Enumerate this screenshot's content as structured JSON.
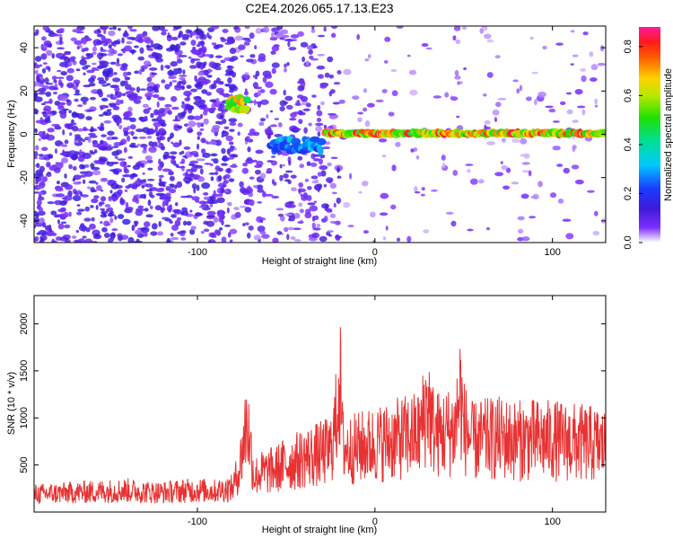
{
  "title": "C2E4.2026.065.17.13.E23",
  "chart_data": [
    {
      "type": "heatmap",
      "xlabel": "Height of straight line (km)",
      "ylabel": "Frequency (Hz)",
      "xlim": [
        -192,
        130
      ],
      "ylim": [
        -50,
        50
      ],
      "xticks": [
        -100,
        0,
        100
      ],
      "xtick_labels": [
        "-100",
        "0",
        "100"
      ],
      "yticks": [
        -40,
        -20,
        0,
        20,
        40
      ],
      "ytick_labels": [
        "-40",
        "-20",
        "0",
        "20",
        "40"
      ],
      "colorbar": {
        "label": "Normalized spectral amplitude",
        "range": [
          0,
          0.88
        ],
        "ticks": [
          0.0,
          0.2,
          0.4,
          0.6,
          0.8
        ],
        "tick_labels": [
          "0.0",
          "0.2",
          "0.4",
          "0.6",
          "0.8"
        ],
        "colormap": "rainbow"
      },
      "features": [
        {
          "name": "tone-main",
          "x_range": [
            -28,
            130
          ],
          "frequency": 0.5,
          "amplitude": 0.85
        },
        {
          "name": "tone-early-a",
          "x_range": [
            -82,
            -72
          ],
          "frequency": 14,
          "amplitude": 0.75
        },
        {
          "name": "tone-early-b",
          "x_range": [
            -58,
            -30
          ],
          "frequency": -5,
          "amplitude": 0.35
        }
      ],
      "grid": false
    },
    {
      "type": "line",
      "xlabel": "Height of straight line (km)",
      "ylabel": "SNR (10 * v/v)",
      "xlim": [
        -192,
        130
      ],
      "ylim": [
        0,
        2300
      ],
      "xticks": [
        -100,
        0,
        100
      ],
      "xtick_labels": [
        "-100",
        "0",
        "100"
      ],
      "yticks": [
        500,
        1000,
        1500,
        2000
      ],
      "ytick_labels": [
        "500",
        "1000",
        "1500",
        "2000"
      ],
      "color": "#e83232",
      "series": [
        {
          "x": [
            -192,
            -180,
            -170,
            -160,
            -150,
            -140,
            -130,
            -120,
            -110,
            -100,
            -90,
            -80,
            -76,
            -72,
            -70,
            -68,
            -65,
            -60,
            -55,
            -50,
            -45,
            -40,
            -35,
            -30,
            -25,
            -22,
            -20,
            -18,
            -15,
            -10,
            -5,
            0,
            5,
            10,
            15,
            20,
            25,
            28,
            30,
            32,
            35,
            40,
            45,
            48,
            50,
            55,
            60,
            70,
            80,
            90,
            100,
            110,
            120,
            130
          ],
          "values": [
            230,
            240,
            250,
            260,
            270,
            280,
            260,
            250,
            270,
            280,
            270,
            310,
            600,
            1200,
            800,
            450,
            500,
            520,
            560,
            620,
            650,
            700,
            720,
            750,
            800,
            1150,
            1800,
            850,
            800,
            820,
            850,
            870,
            900,
            920,
            950,
            980,
            1000,
            1250,
            1450,
            1100,
            1000,
            1020,
            1050,
            1550,
            1100,
            900,
            930,
            950,
            920,
            930,
            920,
            900,
            880,
            850
          ]
        }
      ],
      "grid": false
    }
  ]
}
